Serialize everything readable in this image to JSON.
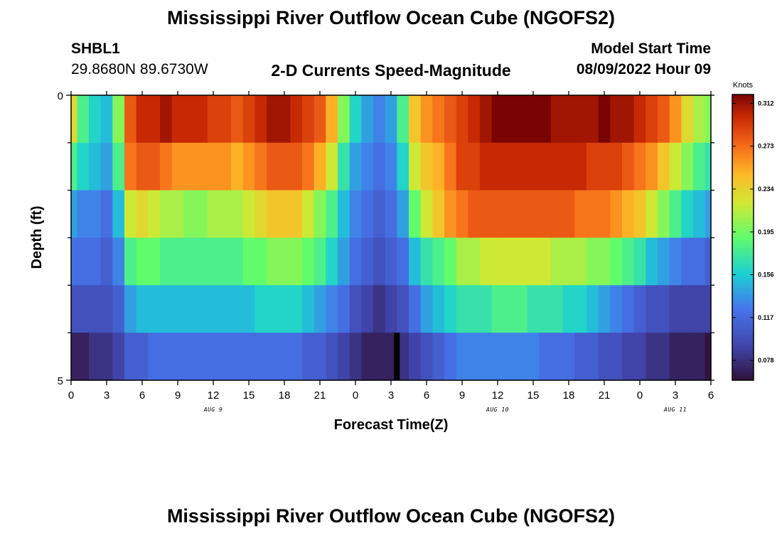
{
  "page": {
    "title": "Mississippi River Outflow Ocean Cube (NGOFS2)",
    "footer_title": "Mississippi River Outflow Ocean Cube (NGOFS2)",
    "station_id": "SHBL1",
    "station_coords": "29.8680N  89.6730W",
    "subtitle": "2-D Currents Speed-Magnitude",
    "model_start_label": "Model Start Time",
    "model_start_value": "08/09/2022 Hour 09"
  },
  "chart_data": {
    "type": "heatmap",
    "title": "2-D Currents Speed-Magnitude",
    "xlabel": "Forecast Time(Z)",
    "ylabel": "Depth (ft)",
    "colorbar_label": "Knots",
    "x": [
      0,
      1,
      2,
      3,
      4,
      5,
      6,
      7,
      8,
      9,
      10,
      11,
      12,
      13,
      14,
      15,
      16,
      17,
      18,
      19,
      20,
      21,
      22,
      23,
      24,
      25,
      26,
      27,
      28,
      29,
      30,
      31,
      32,
      33,
      34,
      35,
      36,
      37,
      38,
      39,
      40,
      41,
      42,
      43,
      44,
      45,
      46,
      47,
      48,
      49,
      50,
      51,
      52,
      53,
      54
    ],
    "x_tick_values": [
      0,
      3,
      6,
      9,
      12,
      15,
      18,
      21,
      24,
      27,
      30,
      33,
      36,
      39,
      42,
      45,
      48,
      51,
      54
    ],
    "x_tick_labels": [
      "0",
      "3",
      "6",
      "9",
      "12",
      "15",
      "18",
      "21",
      "0",
      "3",
      "6",
      "9",
      "12",
      "15",
      "18",
      "21",
      "0",
      "3",
      "6"
    ],
    "date_labels": [
      {
        "x": 12,
        "text": "AUG 9"
      },
      {
        "x": 36,
        "text": "AUG 10"
      },
      {
        "x": 51,
        "text": "AUG 11"
      }
    ],
    "xlim": [
      0,
      54
    ],
    "y_tick_labels": [
      "0",
      "5"
    ],
    "ylim": [
      0,
      5
    ],
    "colorbar_ticks": [
      0.312,
      0.273,
      0.234,
      0.195,
      0.156,
      0.117,
      0.078
    ],
    "colorbar_range": [
      0.06,
      0.32
    ],
    "missing_cells": [
      {
        "layer": 5,
        "x": 27.5
      }
    ],
    "layers": [
      [
        0.23,
        0.18,
        0.16,
        0.15,
        0.2,
        0.28,
        0.3,
        0.3,
        0.31,
        0.3,
        0.3,
        0.3,
        0.29,
        0.29,
        0.28,
        0.29,
        0.3,
        0.31,
        0.31,
        0.3,
        0.29,
        0.28,
        0.25,
        0.2,
        0.16,
        0.14,
        0.13,
        0.14,
        0.18,
        0.24,
        0.26,
        0.27,
        0.28,
        0.29,
        0.3,
        0.31,
        0.32,
        0.32,
        0.32,
        0.32,
        0.32,
        0.31,
        0.31,
        0.31,
        0.31,
        0.32,
        0.31,
        0.31,
        0.3,
        0.29,
        0.28,
        0.26,
        0.23,
        0.21,
        0.2
      ],
      [
        0.18,
        0.16,
        0.15,
        0.14,
        0.18,
        0.27,
        0.28,
        0.28,
        0.27,
        0.26,
        0.26,
        0.26,
        0.26,
        0.26,
        0.25,
        0.26,
        0.27,
        0.28,
        0.28,
        0.28,
        0.27,
        0.25,
        0.22,
        0.17,
        0.14,
        0.13,
        0.12,
        0.13,
        0.16,
        0.22,
        0.24,
        0.25,
        0.27,
        0.29,
        0.29,
        0.3,
        0.3,
        0.3,
        0.3,
        0.3,
        0.3,
        0.3,
        0.3,
        0.3,
        0.29,
        0.29,
        0.29,
        0.28,
        0.27,
        0.26,
        0.24,
        0.22,
        0.2,
        0.18,
        0.17
      ],
      [
        0.14,
        0.13,
        0.13,
        0.12,
        0.15,
        0.22,
        0.23,
        0.22,
        0.21,
        0.21,
        0.2,
        0.2,
        0.21,
        0.21,
        0.21,
        0.22,
        0.23,
        0.24,
        0.24,
        0.24,
        0.22,
        0.2,
        0.18,
        0.15,
        0.13,
        0.12,
        0.11,
        0.12,
        0.14,
        0.19,
        0.22,
        0.24,
        0.26,
        0.27,
        0.28,
        0.28,
        0.28,
        0.28,
        0.28,
        0.28,
        0.28,
        0.28,
        0.28,
        0.27,
        0.27,
        0.27,
        0.26,
        0.25,
        0.24,
        0.22,
        0.2,
        0.18,
        0.16,
        0.15,
        0.14
      ],
      [
        0.12,
        0.12,
        0.12,
        0.11,
        0.13,
        0.18,
        0.19,
        0.19,
        0.18,
        0.18,
        0.18,
        0.18,
        0.18,
        0.18,
        0.18,
        0.19,
        0.19,
        0.2,
        0.2,
        0.2,
        0.19,
        0.18,
        0.16,
        0.14,
        0.12,
        0.11,
        0.1,
        0.11,
        0.12,
        0.15,
        0.17,
        0.18,
        0.19,
        0.21,
        0.21,
        0.22,
        0.22,
        0.22,
        0.22,
        0.22,
        0.22,
        0.21,
        0.21,
        0.21,
        0.2,
        0.2,
        0.19,
        0.18,
        0.17,
        0.15,
        0.14,
        0.13,
        0.12,
        0.12,
        0.11
      ],
      [
        0.1,
        0.1,
        0.1,
        0.1,
        0.11,
        0.14,
        0.15,
        0.15,
        0.15,
        0.15,
        0.15,
        0.15,
        0.15,
        0.15,
        0.15,
        0.15,
        0.16,
        0.16,
        0.16,
        0.16,
        0.15,
        0.14,
        0.13,
        0.12,
        0.1,
        0.09,
        0.08,
        0.09,
        0.1,
        0.12,
        0.14,
        0.15,
        0.16,
        0.17,
        0.17,
        0.17,
        0.18,
        0.18,
        0.18,
        0.17,
        0.17,
        0.17,
        0.16,
        0.16,
        0.15,
        0.14,
        0.13,
        0.12,
        0.11,
        0.1,
        0.1,
        0.09,
        0.09,
        0.09,
        0.09
      ],
      [
        0.07,
        0.07,
        0.08,
        0.08,
        0.09,
        0.11,
        0.11,
        0.12,
        0.12,
        0.12,
        0.12,
        0.12,
        0.12,
        0.12,
        0.12,
        0.12,
        0.12,
        0.12,
        0.12,
        0.12,
        0.11,
        0.11,
        0.1,
        0.09,
        0.08,
        0.07,
        0.07,
        0.07,
        0.08,
        0.09,
        0.1,
        0.11,
        0.12,
        0.13,
        0.13,
        0.13,
        0.13,
        0.13,
        0.13,
        0.13,
        0.12,
        0.12,
        0.12,
        0.11,
        0.11,
        0.1,
        0.1,
        0.09,
        0.09,
        0.08,
        0.08,
        0.07,
        0.07,
        0.07,
        0.06
      ]
    ]
  }
}
